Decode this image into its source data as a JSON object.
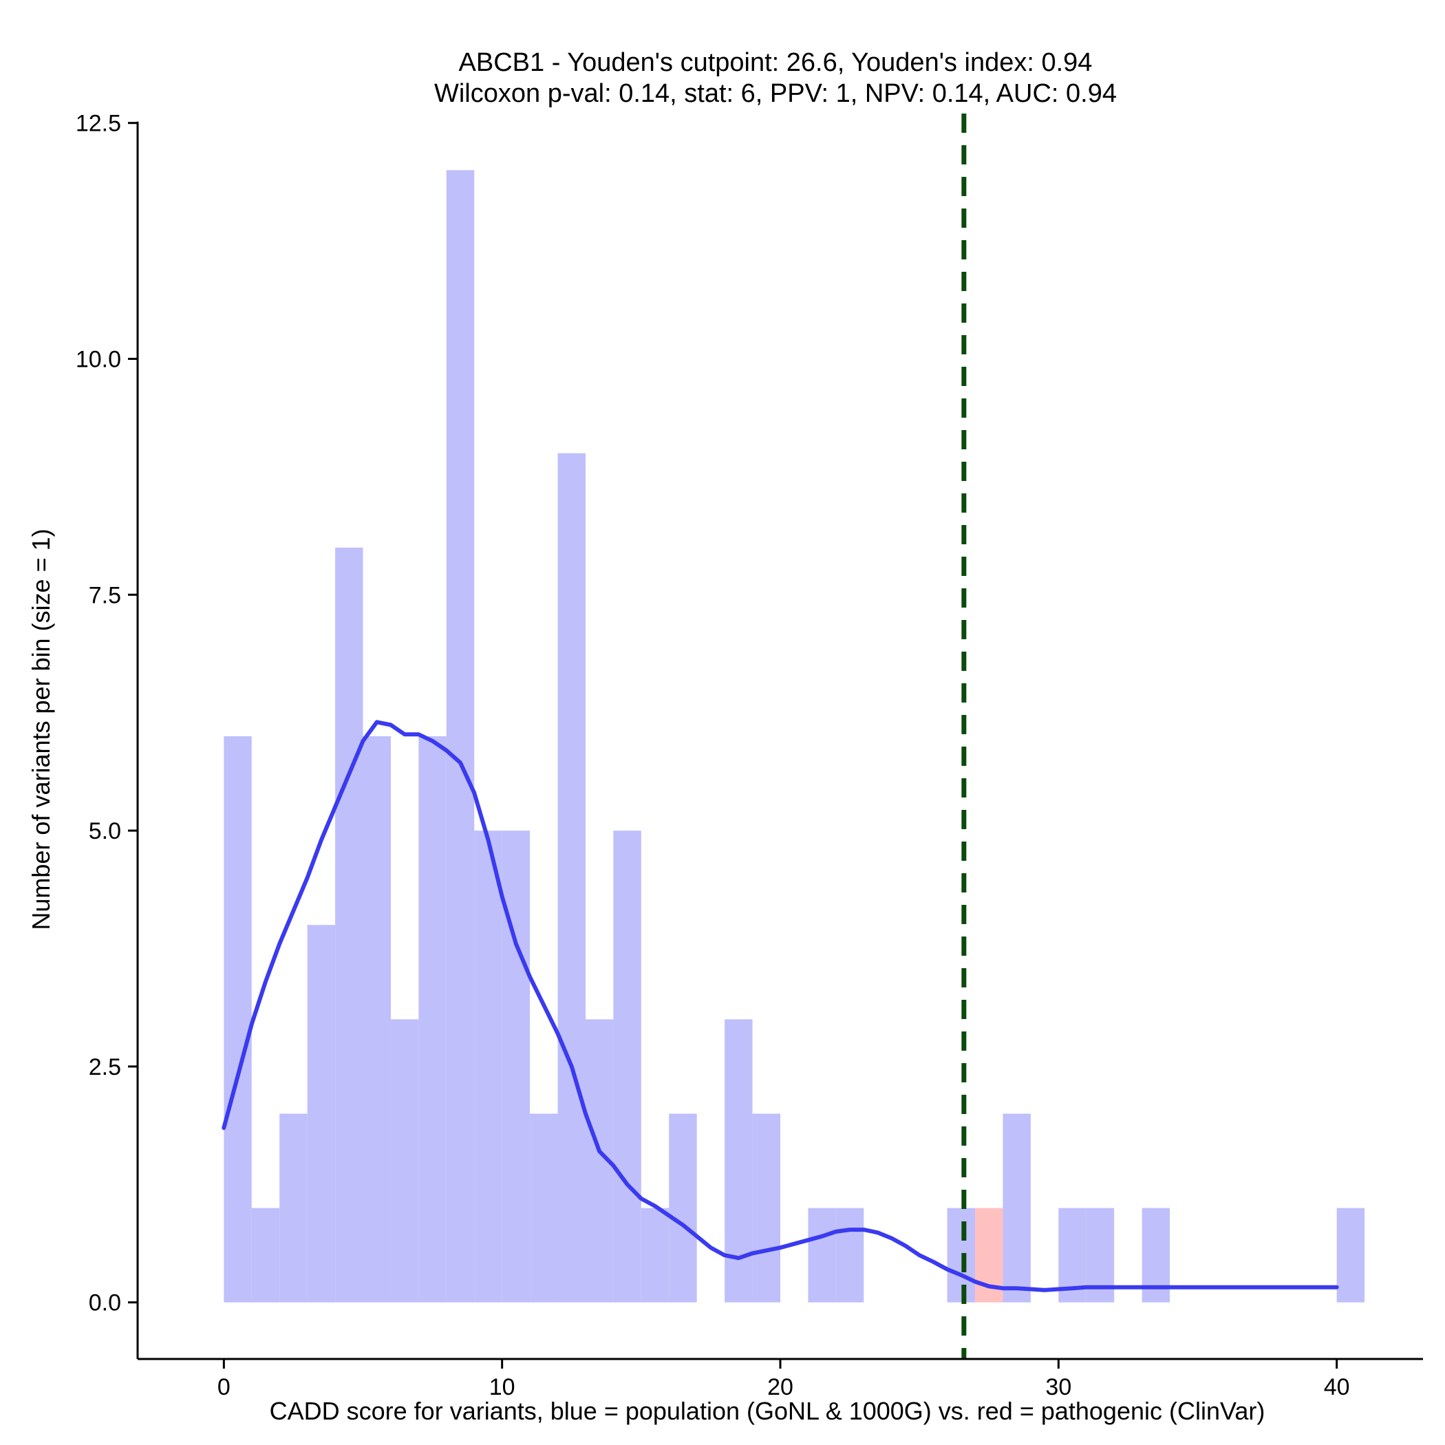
{
  "chart_data": {
    "type": "bar",
    "title_lines": [
      "ABCB1 - Youden's cutpoint: 26.6, Youden's index: 0.94",
      "Wilcoxon p-val: 0.14, stat: 6, PPV: 1, NPV: 0.14, AUC: 0.94"
    ],
    "xlabel": "CADD score for variants, blue = population (GoNL & 1000G) vs. red = pathogenic (ClinVar)",
    "ylabel": "Number of variants per bin (size = 1)",
    "xlim": [
      -3.1,
      43.1
    ],
    "ylim": [
      -0.6,
      12.6
    ],
    "x_ticks": [
      0,
      10,
      20,
      30,
      40
    ],
    "x_tick_labels": [
      "0",
      "10",
      "20",
      "30",
      "40"
    ],
    "y_ticks": [
      0,
      2.5,
      5,
      7.5,
      10,
      12.5
    ],
    "y_tick_labels": [
      "0.0",
      "2.5",
      "5.0",
      "7.5",
      "10.0",
      "12.5"
    ],
    "bin_width": 1,
    "series": [
      {
        "name": "population (GoNL & 1000G)",
        "color": "#bfbffc",
        "bin_starts": [
          0,
          1,
          2,
          3,
          4,
          5,
          6,
          7,
          8,
          9,
          10,
          11,
          12,
          13,
          14,
          15,
          16,
          17,
          18,
          19,
          20,
          21,
          22,
          23,
          24,
          25,
          26,
          27,
          28,
          29,
          30,
          31,
          32,
          33,
          34,
          35,
          36,
          37,
          38,
          39,
          40
        ],
        "values": [
          6,
          1,
          2,
          4,
          8,
          6,
          3,
          6,
          12,
          5,
          5,
          2,
          9,
          3,
          5,
          1,
          2,
          0,
          3,
          2,
          0,
          1,
          1,
          0,
          0,
          0,
          1,
          0,
          2,
          0,
          1,
          1,
          0,
          1,
          0,
          0,
          0,
          0,
          0,
          0,
          1
        ]
      },
      {
        "name": "pathogenic (ClinVar)",
        "color": "#ffc0c0",
        "bin_starts": [
          27
        ],
        "values": [
          1
        ]
      }
    ],
    "density_curve": {
      "name": "population density (scaled)",
      "color": "#3a3af0",
      "x": [
        0,
        0.5,
        1,
        1.5,
        2,
        2.5,
        3,
        3.5,
        4,
        4.5,
        5,
        5.5,
        6,
        6.5,
        7,
        7.5,
        8,
        8.5,
        9,
        9.5,
        10,
        10.5,
        11,
        11.5,
        12,
        12.5,
        13,
        13.5,
        14,
        14.5,
        15,
        15.5,
        16,
        16.5,
        17,
        17.5,
        18,
        18.5,
        19,
        19.5,
        20,
        20.5,
        21,
        21.5,
        22,
        22.5,
        23,
        23.5,
        24,
        24.5,
        25,
        25.5,
        26,
        26.5,
        27,
        27.5,
        28,
        28.5,
        29,
        29.5,
        30,
        30.5,
        31,
        31.5,
        32,
        32.5,
        33,
        33.5,
        34,
        34.5,
        35,
        35.5,
        36,
        36.5,
        37,
        37.5,
        38,
        38.5,
        39,
        39.5,
        40
      ],
      "y": [
        1.85,
        2.4,
        2.95,
        3.4,
        3.8,
        4.15,
        4.5,
        4.9,
        5.25,
        5.6,
        5.95,
        6.15,
        6.12,
        6.02,
        6.02,
        5.95,
        5.85,
        5.72,
        5.4,
        4.9,
        4.3,
        3.8,
        3.45,
        3.15,
        2.85,
        2.5,
        2.0,
        1.6,
        1.45,
        1.25,
        1.1,
        1.02,
        0.92,
        0.82,
        0.7,
        0.58,
        0.5,
        0.47,
        0.52,
        0.55,
        0.58,
        0.62,
        0.66,
        0.7,
        0.75,
        0.77,
        0.77,
        0.74,
        0.68,
        0.6,
        0.5,
        0.43,
        0.35,
        0.29,
        0.22,
        0.17,
        0.15,
        0.15,
        0.14,
        0.13,
        0.14,
        0.15,
        0.16,
        0.16,
        0.16,
        0.16,
        0.16,
        0.16,
        0.16,
        0.16,
        0.16,
        0.16,
        0.16,
        0.16,
        0.16,
        0.16,
        0.16,
        0.16,
        0.16,
        0.16,
        0.16
      ]
    },
    "cutpoint": {
      "x": 26.6,
      "label": "Youden's cutpoint",
      "color": "#0b4a0b"
    },
    "grid": false,
    "legend": "none"
  }
}
